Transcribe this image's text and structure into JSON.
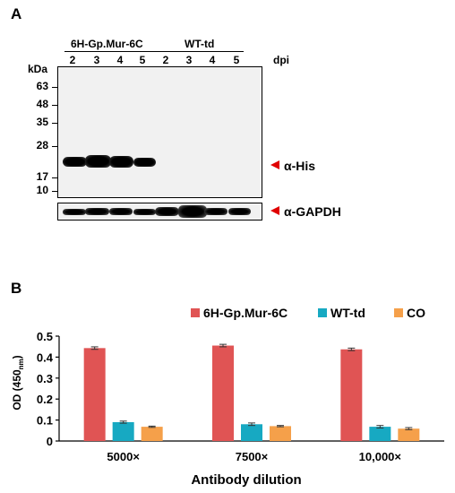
{
  "panel_a": {
    "letter": "A",
    "group1_label": "6H-Gp.Mur-6C",
    "group2_label": "WT-td",
    "lanes": [
      "2",
      "3",
      "4",
      "5",
      "2",
      "3",
      "4",
      "5"
    ],
    "dpi_label": "dpi",
    "kda_label": "kDa",
    "markers": [
      "63",
      "48",
      "35",
      "28",
      "17",
      "10"
    ],
    "his_label": "α-His",
    "gapdh_label": "α-GAPDH",
    "arrow_color": "#e00000"
  },
  "panel_b": {
    "letter": "B"
  },
  "chart_data": {
    "type": "bar",
    "categories": [
      "5000×",
      "7500×",
      "10,000×"
    ],
    "series": [
      {
        "name": "6H-Gp.Mur-6C",
        "values": [
          0.443,
          0.455,
          0.437
        ],
        "errors": [
          0.006,
          0.006,
          0.006
        ],
        "color": "#e05454"
      },
      {
        "name": "WT-td",
        "values": [
          0.09,
          0.08,
          0.068
        ],
        "errors": [
          0.005,
          0.006,
          0.006
        ],
        "color": "#17a9c2"
      },
      {
        "name": "CO",
        "values": [
          0.068,
          0.071,
          0.059
        ],
        "errors": [
          0.003,
          0.003,
          0.005
        ],
        "color": "#f5a04a"
      }
    ],
    "ylabel_main": "OD (450",
    "ylabel_sub": "nm",
    "ylabel_end": ")",
    "xlabel": "Antibody dilution",
    "ylim": [
      0,
      0.5
    ],
    "yticks": [
      "0",
      "0.1",
      "0.2",
      "0.3",
      "0.4",
      "0.5"
    ],
    "legend_position": "top",
    "grid": false
  }
}
